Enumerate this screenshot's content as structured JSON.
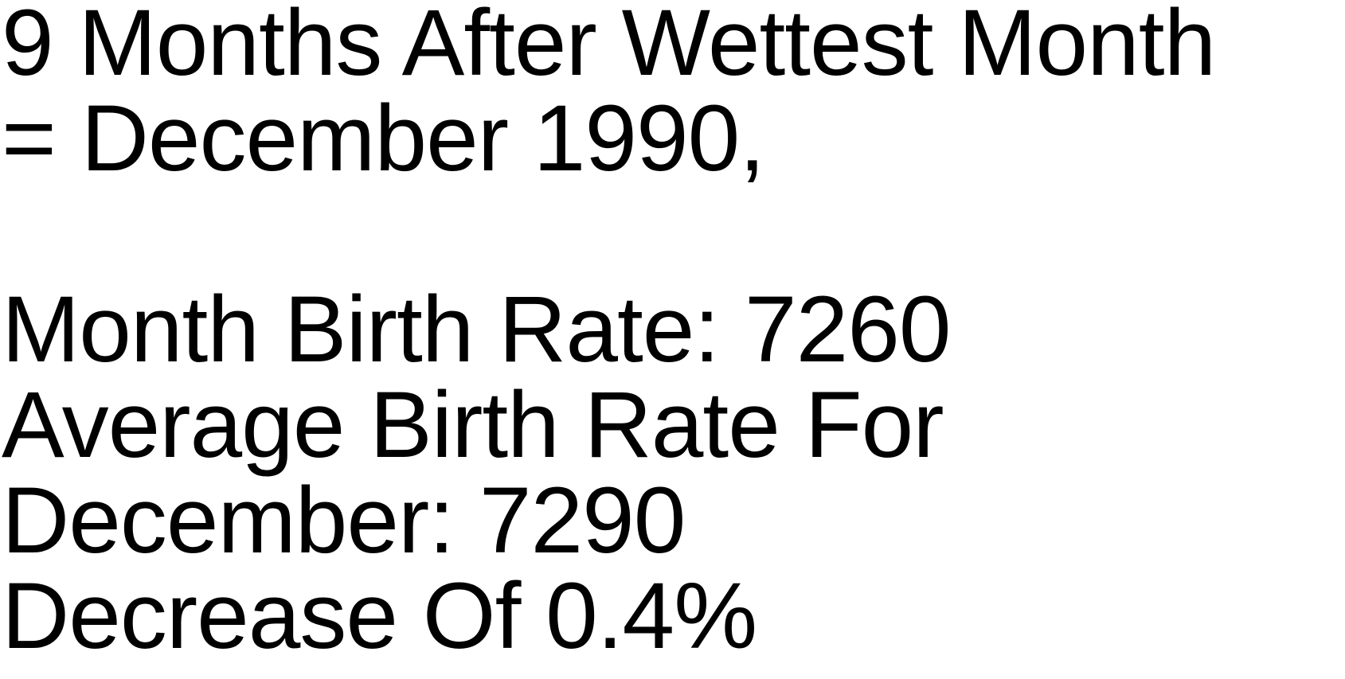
{
  "text_block": {
    "line1": "9 Months After Wettest Month",
    "line2": "= December 1990,",
    "line3": "Month Birth Rate: 7260",
    "line4": "Average Birth Rate For",
    "line5": "December: 7290",
    "line6": "Decrease Of 0.4%"
  },
  "colors": {
    "text": "#000000",
    "background": "#ffffff"
  }
}
